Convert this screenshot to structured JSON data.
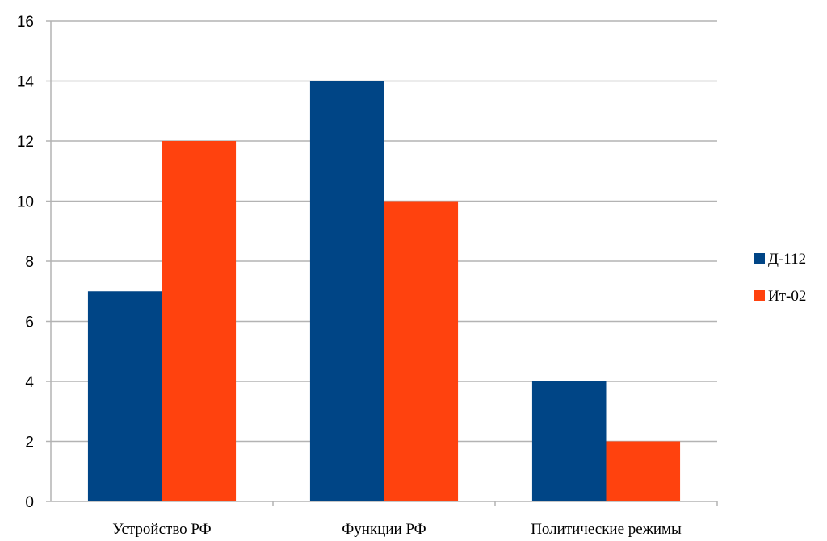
{
  "chart_data": {
    "type": "bar",
    "categories": [
      "Устройство РФ",
      "Функции РФ",
      "Политические режимы"
    ],
    "series": [
      {
        "name": "Д-112",
        "values": [
          7,
          14,
          4
        ],
        "color": "#004586"
      },
      {
        "name": "Ит-02",
        "values": [
          12,
          10,
          2
        ],
        "color": "#ff420e"
      }
    ],
    "ylim": [
      0,
      16
    ],
    "y_ticks": [
      "0",
      "2",
      "4",
      "6",
      "8",
      "10",
      "12",
      "14",
      "16"
    ],
    "grid": true,
    "legend_position": "right"
  }
}
